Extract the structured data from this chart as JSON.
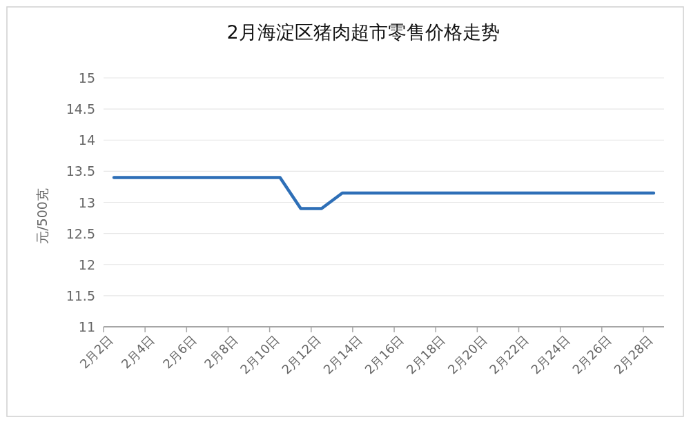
{
  "chart_data": {
    "type": "line",
    "title": "2月海淀区猪肉超市零售价格走势",
    "ylabel": "元/500克",
    "categories": [
      "2月2日",
      null,
      "2月4日",
      null,
      "2月6日",
      null,
      "2月8日",
      null,
      "2月10日",
      null,
      "2月12日",
      null,
      "2月14日",
      null,
      "2月16日",
      null,
      "2月18日",
      null,
      "2月20日",
      null,
      "2月22日",
      null,
      "2月24日",
      null,
      "2月26日",
      null,
      "2月28日"
    ],
    "series": [
      {
        "color": "#2e6fb7",
        "values": [
          13.4,
          13.4,
          13.4,
          13.4,
          13.4,
          13.4,
          13.4,
          13.4,
          13.4,
          12.9,
          12.9,
          13.15,
          13.15,
          13.15,
          13.15,
          13.15,
          13.15,
          13.15,
          13.15,
          13.15,
          13.15,
          13.15,
          13.15,
          13.15,
          13.15,
          13.15,
          13.15
        ]
      }
    ],
    "ylim": [
      11,
      15
    ],
    "yticks": [
      11,
      11.5,
      12,
      12.5,
      13,
      13.5,
      14,
      14.5,
      15
    ],
    "grid": "y"
  }
}
